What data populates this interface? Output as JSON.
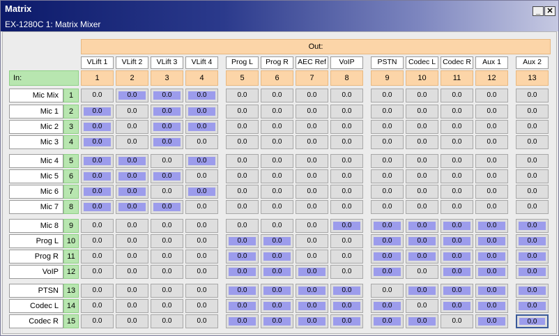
{
  "window": {
    "title": "Matrix",
    "subtitle": "EX-1280C 1: Matrix Mixer",
    "minimize_label": "_",
    "close_label": "✕"
  },
  "header": {
    "out_label": "Out:",
    "in_label": "In:"
  },
  "outputs": [
    {
      "name": "VLift 1",
      "num": "1"
    },
    {
      "name": "VLift 2",
      "num": "2"
    },
    {
      "name": "VLift 3",
      "num": "3"
    },
    {
      "name": "VLift 4",
      "num": "4"
    },
    {
      "name": "Prog L",
      "num": "5"
    },
    {
      "name": "Prog R",
      "num": "6"
    },
    {
      "name": "AEC Ref",
      "num": "7"
    },
    {
      "name": "VoIP",
      "num": "8"
    },
    {
      "name": "PSTN",
      "num": "9"
    },
    {
      "name": "Codec L",
      "num": "10"
    },
    {
      "name": "Codec R",
      "num": "11"
    },
    {
      "name": "Aux 1",
      "num": "12"
    },
    {
      "name": "Aux 2",
      "num": "13"
    }
  ],
  "inputs": [
    {
      "name": "Mic Mix",
      "num": "1"
    },
    {
      "name": "Mic 1",
      "num": "2"
    },
    {
      "name": "Mic 2",
      "num": "3"
    },
    {
      "name": "Mic 3",
      "num": "4"
    },
    {
      "name": "Mic 4",
      "num": "5"
    },
    {
      "name": "Mic 5",
      "num": "6"
    },
    {
      "name": "Mic 6",
      "num": "7"
    },
    {
      "name": "Mic 7",
      "num": "8"
    },
    {
      "name": "Mic 8",
      "num": "9"
    },
    {
      "name": "Prog L",
      "num": "10"
    },
    {
      "name": "Prog R",
      "num": "11"
    },
    {
      "name": "VoIP",
      "num": "12"
    },
    {
      "name": "PTSN",
      "num": "13"
    },
    {
      "name": "Codec L",
      "num": "14"
    },
    {
      "name": "Codec R",
      "num": "15"
    }
  ],
  "cell_value": "0.0",
  "enabled": [
    "0111000000000",
    "1011000000000",
    "1011000000000",
    "1010000000000",
    "1101000000000",
    "1110000000000",
    "1101000000000",
    "1110000000000",
    "0000000111111",
    "0000110011111",
    "0000110011111",
    "0000111010111",
    "0000111101111",
    "0000111110111",
    "0000111111011"
  ],
  "selected_cell": {
    "row": 15,
    "col": 13
  },
  "colors": {
    "enabled_fill": "#9c9cec",
    "out_header": "#fcd5a8",
    "in_header": "#b8e6b0",
    "cell_bg": "#dedede"
  }
}
